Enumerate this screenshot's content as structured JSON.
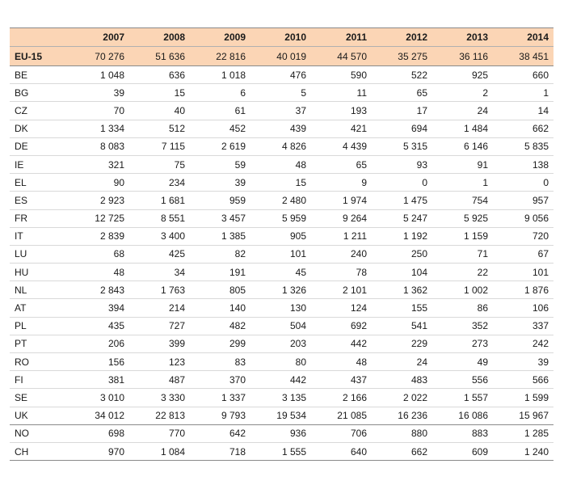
{
  "table": {
    "corner_label": "",
    "years": [
      "2007",
      "2008",
      "2009",
      "2010",
      "2011",
      "2012",
      "2013",
      "2014"
    ],
    "eu15": {
      "label": "EU-15",
      "values": [
        "70 276",
        "51 636",
        "22 816",
        "40 019",
        "44 570",
        "35 275",
        "36 116",
        "38 451"
      ]
    },
    "rows": [
      {
        "label": "BE",
        "values": [
          "1 048",
          "636",
          "1 018",
          "476",
          "590",
          "522",
          "925",
          "660"
        ]
      },
      {
        "label": "BG",
        "values": [
          "39",
          "15",
          "6",
          "5",
          "11",
          "65",
          "2",
          "1"
        ]
      },
      {
        "label": "CZ",
        "values": [
          "70",
          "40",
          "61",
          "37",
          "193",
          "17",
          "24",
          "14"
        ]
      },
      {
        "label": "DK",
        "values": [
          "1 334",
          "512",
          "452",
          "439",
          "421",
          "694",
          "1 484",
          "662"
        ]
      },
      {
        "label": "DE",
        "values": [
          "8 083",
          "7 115",
          "2 619",
          "4 826",
          "4 439",
          "5 315",
          "6 146",
          "5 835"
        ]
      },
      {
        "label": "IE",
        "values": [
          "321",
          "75",
          "59",
          "48",
          "65",
          "93",
          "91",
          "138"
        ]
      },
      {
        "label": "EL",
        "values": [
          "90",
          "234",
          "39",
          "15",
          "9",
          "0",
          "1",
          "0"
        ]
      },
      {
        "label": "ES",
        "values": [
          "2 923",
          "1 681",
          "959",
          "2 480",
          "1 974",
          "1 475",
          "754",
          "957"
        ]
      },
      {
        "label": "FR",
        "values": [
          "12 725",
          "8 551",
          "3 457",
          "5 959",
          "9 264",
          "5 247",
          "5 925",
          "9 056"
        ]
      },
      {
        "label": "IT",
        "values": [
          "2 839",
          "3 400",
          "1 385",
          "905",
          "1 211",
          "1 192",
          "1 159",
          "720"
        ]
      },
      {
        "label": "LU",
        "values": [
          "68",
          "425",
          "82",
          "101",
          "240",
          "250",
          "71",
          "67"
        ]
      },
      {
        "label": "HU",
        "values": [
          "48",
          "34",
          "191",
          "45",
          "78",
          "104",
          "22",
          "101"
        ]
      },
      {
        "label": "NL",
        "values": [
          "2 843",
          "1 763",
          "805",
          "1 326",
          "2 101",
          "1 362",
          "1 002",
          "1 876"
        ]
      },
      {
        "label": "AT",
        "values": [
          "394",
          "214",
          "140",
          "130",
          "124",
          "155",
          "86",
          "106"
        ]
      },
      {
        "label": "PL",
        "values": [
          "435",
          "727",
          "482",
          "504",
          "692",
          "541",
          "352",
          "337"
        ]
      },
      {
        "label": "PT",
        "values": [
          "206",
          "399",
          "299",
          "203",
          "442",
          "229",
          "273",
          "242"
        ]
      },
      {
        "label": "RO",
        "values": [
          "156",
          "123",
          "83",
          "80",
          "48",
          "24",
          "49",
          "39"
        ]
      },
      {
        "label": "FI",
        "values": [
          "381",
          "487",
          "370",
          "442",
          "437",
          "483",
          "556",
          "566"
        ]
      },
      {
        "label": "SE",
        "values": [
          "3 010",
          "3 330",
          "1 337",
          "3 135",
          "2 166",
          "2 022",
          "1 557",
          "1 599"
        ]
      },
      {
        "label": "UK",
        "values": [
          "34 012",
          "22 813",
          "9 793",
          "19 534",
          "21 085",
          "16 236",
          "16 086",
          "15 967"
        ]
      },
      {
        "label": "NO",
        "values": [
          "698",
          "770",
          "642",
          "936",
          "706",
          "880",
          "883",
          "1 285"
        ]
      },
      {
        "label": "CH",
        "values": [
          "970",
          "1 084",
          "718",
          "1 555",
          "640",
          "662",
          "609",
          "1 240"
        ]
      }
    ]
  }
}
